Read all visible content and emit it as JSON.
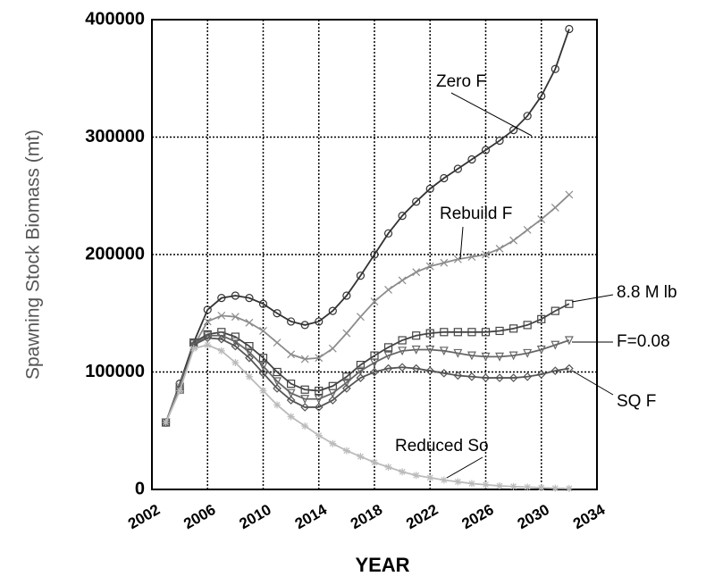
{
  "chart_data": {
    "type": "line",
    "x_label": "YEAR",
    "y_label": "Spawning Stock Biomass (mt)",
    "x": [
      2003,
      2004,
      2005,
      2006,
      2007,
      2008,
      2009,
      2010,
      2011,
      2012,
      2013,
      2014,
      2015,
      2016,
      2017,
      2018,
      2019,
      2020,
      2021,
      2022,
      2023,
      2024,
      2025,
      2026,
      2027,
      2028,
      2029,
      2030,
      2031,
      2032
    ],
    "xlim": [
      2002,
      2034
    ],
    "xticks": [
      2002,
      2006,
      2010,
      2014,
      2018,
      2022,
      2026,
      2030,
      2034
    ],
    "ylim": [
      0,
      400000
    ],
    "yticks": [
      0,
      100000,
      200000,
      300000,
      400000
    ],
    "grid": true,
    "series": [
      {
        "name": "Zero F",
        "color": "#333333",
        "marker": "circle",
        "values": [
          57000,
          90000,
          125000,
          153000,
          163000,
          165000,
          163000,
          158000,
          150000,
          143000,
          140000,
          143000,
          152000,
          165000,
          182000,
          200000,
          218000,
          233000,
          245000,
          256000,
          265000,
          273000,
          281000,
          289000,
          297000,
          306000,
          318000,
          335000,
          358000,
          392000
        ]
      },
      {
        "name": "Rebuild F",
        "color": "#8c8c8c",
        "marker": "x",
        "values": [
          57000,
          88000,
          122000,
          143000,
          148000,
          147000,
          142000,
          135000,
          125000,
          115000,
          111000,
          112000,
          120000,
          133000,
          147000,
          160000,
          170000,
          178000,
          185000,
          190000,
          193000,
          196000,
          198000,
          200000,
          205000,
          212000,
          221000,
          230000,
          240000,
          251000
        ]
      },
      {
        "name": "8.8 M lb",
        "color": "#444444",
        "marker": "square",
        "values": [
          57000,
          85000,
          125000,
          132000,
          134000,
          130000,
          122000,
          112000,
          100000,
          90000,
          85000,
          84000,
          88000,
          96000,
          106000,
          114000,
          121000,
          127000,
          131000,
          133000,
          134000,
          134000,
          134000,
          134000,
          135000,
          137000,
          140000,
          145000,
          152000,
          158000
        ]
      },
      {
        "name": "F=0.08",
        "color": "#666666",
        "marker": "triangle",
        "values": [
          57000,
          85000,
          124000,
          131000,
          131000,
          126000,
          117000,
          105000,
          92000,
          82000,
          77000,
          77000,
          82000,
          91000,
          101000,
          108000,
          114000,
          118000,
          119000,
          119000,
          118000,
          116000,
          114000,
          113000,
          113000,
          114000,
          116000,
          119000,
          123000,
          127000
        ]
      },
      {
        "name": "SQ F",
        "color": "#555555",
        "marker": "diamond",
        "values": [
          57000,
          85000,
          123000,
          129000,
          128000,
          122000,
          112000,
          99000,
          86000,
          76000,
          70000,
          70000,
          76000,
          86000,
          95000,
          100000,
          103000,
          104000,
          103000,
          101000,
          99000,
          97000,
          96000,
          95000,
          95000,
          95000,
          96000,
          98000,
          101000,
          103000
        ]
      },
      {
        "name": "Reduced So",
        "color": "#bbbbbb",
        "marker": "star",
        "values": [
          57000,
          84000,
          120000,
          123000,
          118000,
          108000,
          96000,
          84000,
          72000,
          62000,
          54000,
          46000,
          39000,
          33000,
          28000,
          23000,
          19000,
          15000,
          12000,
          10000,
          8000,
          6500,
          5000,
          4000,
          3000,
          2500,
          2000,
          1500,
          1000,
          800
        ]
      }
    ]
  }
}
